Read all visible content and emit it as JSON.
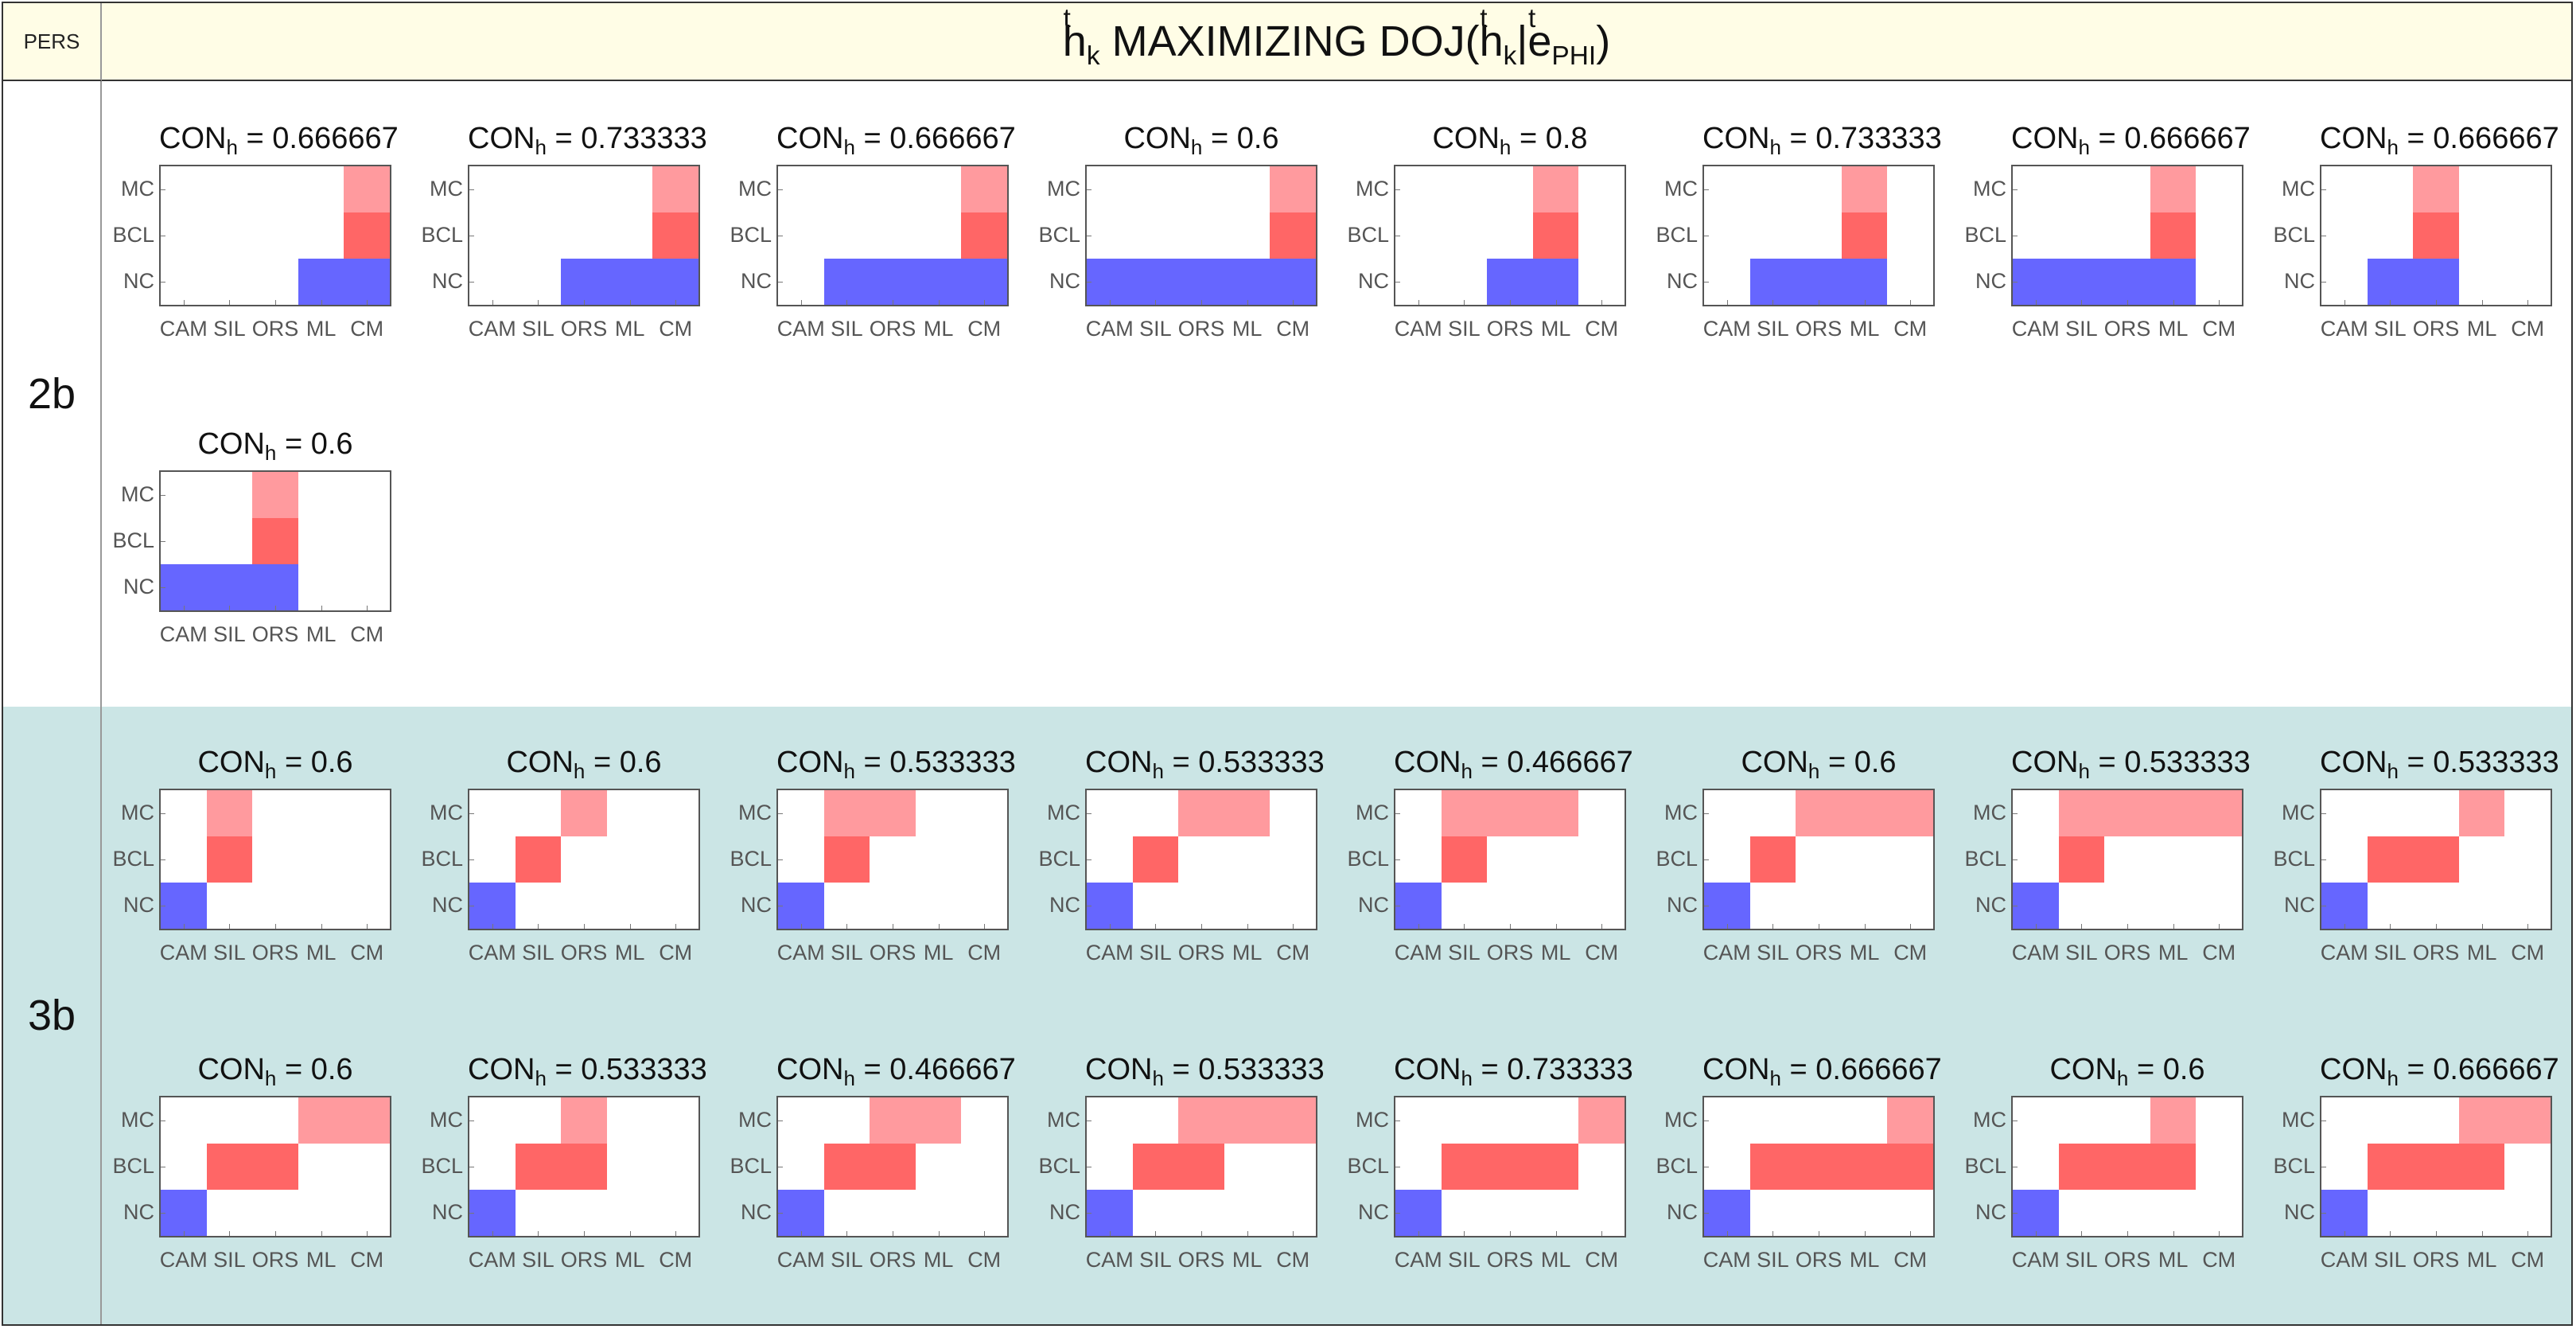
{
  "header": {
    "pers_label": "PERS",
    "title": {
      "pre": "h",
      "pre_sup": "t",
      "pre_sub": "k",
      "mid": " MAXIMIZING DOJ(",
      "mid_h": "h",
      "mid_h_sup": "t",
      "mid_h_sub": "k",
      "bar": "|",
      "e": "e",
      "e_sup": "t",
      "e_sub": "PHI",
      "close": ")"
    }
  },
  "rows": [
    {
      "label": "2b"
    },
    {
      "label": "3b"
    }
  ],
  "title_prefix": "CON",
  "title_sub": "h",
  "axis": {
    "x_ticks": [
      "CAM",
      "SIL",
      "ORS",
      "ML",
      "CM"
    ],
    "y_ticks": [
      "NC",
      "BCL",
      "MC"
    ]
  },
  "colors": {
    "NC": "#6666ff",
    "BCL": "#ff6666",
    "MC": "#ff9a9e",
    "row_3b_bg": "#cbe5e5",
    "header_bg": "#fffde6"
  },
  "chart_data": [
    {
      "type": "heatmap",
      "row": "2b",
      "con": "0.666667",
      "NC": [
        3,
        4
      ],
      "BCL": [
        4,
        4
      ],
      "MC": [
        4,
        4
      ]
    },
    {
      "type": "heatmap",
      "row": "2b",
      "con": "0.733333",
      "NC": [
        2,
        4
      ],
      "BCL": [
        4,
        4
      ],
      "MC": [
        4,
        4
      ]
    },
    {
      "type": "heatmap",
      "row": "2b",
      "con": "0.666667",
      "NC": [
        1,
        4
      ],
      "BCL": [
        4,
        4
      ],
      "MC": [
        4,
        4
      ]
    },
    {
      "type": "heatmap",
      "row": "2b",
      "con": "0.6",
      "NC": [
        0,
        4
      ],
      "BCL": [
        4,
        4
      ],
      "MC": [
        4,
        4
      ]
    },
    {
      "type": "heatmap",
      "row": "2b",
      "con": "0.8",
      "NC": [
        2,
        3
      ],
      "BCL": [
        3,
        3
      ],
      "MC": [
        3,
        3
      ]
    },
    {
      "type": "heatmap",
      "row": "2b",
      "con": "0.733333",
      "NC": [
        1,
        3
      ],
      "BCL": [
        3,
        3
      ],
      "MC": [
        3,
        3
      ]
    },
    {
      "type": "heatmap",
      "row": "2b",
      "con": "0.666667",
      "NC": [
        0,
        3
      ],
      "BCL": [
        3,
        3
      ],
      "MC": [
        3,
        3
      ]
    },
    {
      "type": "heatmap",
      "row": "2b",
      "con": "0.666667",
      "NC": [
        1,
        2
      ],
      "BCL": [
        2,
        2
      ],
      "MC": [
        2,
        2
      ]
    },
    {
      "type": "heatmap",
      "row": "2b",
      "con": "0.6",
      "NC": [
        0,
        2
      ],
      "BCL": [
        2,
        2
      ],
      "MC": [
        2,
        2
      ]
    },
    {
      "type": "heatmap",
      "row": "3b",
      "con": "0.6",
      "NC": [
        0,
        0
      ],
      "BCL": [
        1,
        1
      ],
      "MC": [
        1,
        1
      ]
    },
    {
      "type": "heatmap",
      "row": "3b",
      "con": "0.6",
      "NC": [
        0,
        0
      ],
      "BCL": [
        1,
        1
      ],
      "MC": [
        2,
        2
      ]
    },
    {
      "type": "heatmap",
      "row": "3b",
      "con": "0.533333",
      "NC": [
        0,
        0
      ],
      "BCL": [
        1,
        1
      ],
      "MC": [
        1,
        2
      ]
    },
    {
      "type": "heatmap",
      "row": "3b",
      "con": "0.533333",
      "NC": [
        0,
        0
      ],
      "BCL": [
        1,
        1
      ],
      "MC": [
        2,
        3
      ]
    },
    {
      "type": "heatmap",
      "row": "3b",
      "con": "0.466667",
      "NC": [
        0,
        0
      ],
      "BCL": [
        1,
        1
      ],
      "MC": [
        1,
        3
      ]
    },
    {
      "type": "heatmap",
      "row": "3b",
      "con": "0.6",
      "NC": [
        0,
        0
      ],
      "BCL": [
        1,
        1
      ],
      "MC": [
        2,
        4
      ]
    },
    {
      "type": "heatmap",
      "row": "3b",
      "con": "0.533333",
      "NC": [
        0,
        0
      ],
      "BCL": [
        1,
        1
      ],
      "MC": [
        1,
        4
      ]
    },
    {
      "type": "heatmap",
      "row": "3b",
      "con": "0.533333",
      "NC": [
        0,
        0
      ],
      "BCL": [
        1,
        2
      ],
      "MC": [
        3,
        3
      ]
    },
    {
      "type": "heatmap",
      "row": "3b",
      "con": "0.6",
      "NC": [
        0,
        0
      ],
      "BCL": [
        1,
        2
      ],
      "MC": [
        3,
        4
      ]
    },
    {
      "type": "heatmap",
      "row": "3b",
      "con": "0.533333",
      "NC": [
        0,
        0
      ],
      "BCL": [
        1,
        2
      ],
      "MC": [
        2,
        2
      ]
    },
    {
      "type": "heatmap",
      "row": "3b",
      "con": "0.466667",
      "NC": [
        0,
        0
      ],
      "BCL": [
        1,
        2
      ],
      "MC": [
        2,
        3
      ]
    },
    {
      "type": "heatmap",
      "row": "3b",
      "con": "0.533333",
      "NC": [
        0,
        0
      ],
      "BCL": [
        1,
        2
      ],
      "MC": [
        2,
        4
      ]
    },
    {
      "type": "heatmap",
      "row": "3b",
      "con": "0.733333",
      "NC": [
        0,
        0
      ],
      "BCL": [
        1,
        3
      ],
      "MC": [
        4,
        4
      ]
    },
    {
      "type": "heatmap",
      "row": "3b",
      "con": "0.666667",
      "NC": [
        0,
        0
      ],
      "BCL": [
        1,
        4
      ],
      "MC": [
        4,
        4
      ]
    },
    {
      "type": "heatmap",
      "row": "3b",
      "con": "0.6",
      "NC": [
        0,
        0
      ],
      "BCL": [
        1,
        3
      ],
      "MC": [
        3,
        3
      ]
    },
    {
      "type": "heatmap",
      "row": "3b",
      "con": "0.666667",
      "NC": [
        0,
        0
      ],
      "BCL": [
        1,
        3
      ],
      "MC": [
        3,
        4
      ]
    }
  ]
}
